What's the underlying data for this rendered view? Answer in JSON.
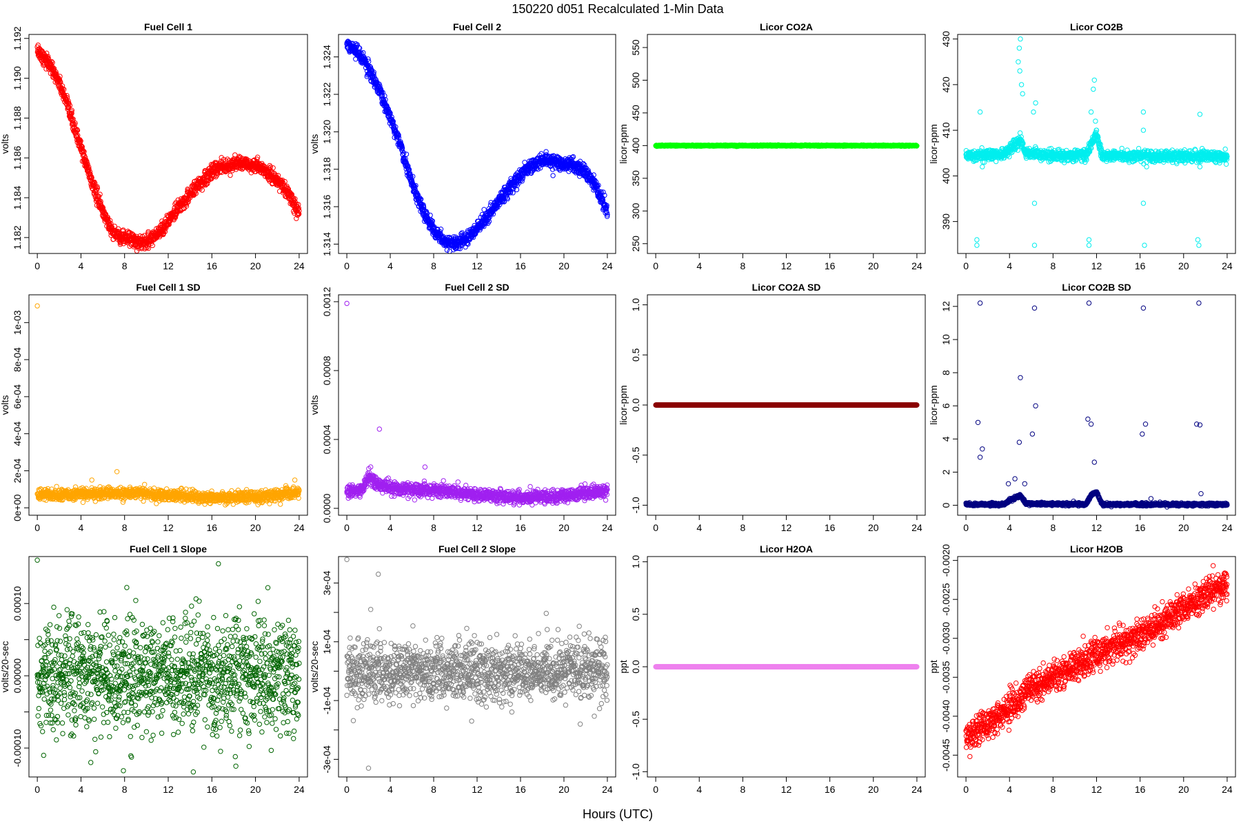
{
  "figure": {
    "title": "150220   d051   Recalculated 1-Min Data",
    "xlabel": "Hours (UTC)"
  },
  "chart_data": [
    {
      "id": "fc1",
      "type": "scatter",
      "title": "Fuel Cell 1",
      "ylabel": "volts",
      "color": "#ff0000",
      "xlim": [
        0,
        24
      ],
      "xticks": [
        "0",
        "4",
        "8",
        "12",
        "16",
        "20",
        "24"
      ],
      "ylim": [
        1.1812,
        1.1922
      ],
      "yticks": [
        1.182,
        1.184,
        1.186,
        1.188,
        1.19,
        1.192
      ],
      "ytick_labels": [
        "1.182",
        "1.184",
        "1.186",
        "1.188",
        "1.190",
        "1.192"
      ],
      "trend": [
        [
          0,
          1.1914
        ],
        [
          1,
          1.1908
        ],
        [
          2,
          1.1898
        ],
        [
          3,
          1.1882
        ],
        [
          4,
          1.1865
        ],
        [
          5,
          1.1848
        ],
        [
          6,
          1.1833
        ],
        [
          7,
          1.1822
        ],
        [
          8,
          1.182
        ],
        [
          9,
          1.1818
        ],
        [
          10,
          1.1818
        ],
        [
          11,
          1.1822
        ],
        [
          12,
          1.1828
        ],
        [
          13,
          1.1835
        ],
        [
          14,
          1.1842
        ],
        [
          15,
          1.1848
        ],
        [
          16,
          1.1853
        ],
        [
          17,
          1.1856
        ],
        [
          18,
          1.1857
        ],
        [
          19,
          1.1857
        ],
        [
          20,
          1.1856
        ],
        [
          21,
          1.1853
        ],
        [
          22,
          1.1849
        ],
        [
          23,
          1.1842
        ],
        [
          24,
          1.1832
        ]
      ],
      "spread": 0.00018,
      "points": 1400
    },
    {
      "id": "fc2",
      "type": "scatter",
      "title": "Fuel Cell 2",
      "ylabel": "volts",
      "color": "#0000ff",
      "xlim": [
        0,
        24
      ],
      "xticks": [
        "0",
        "4",
        "8",
        "12",
        "16",
        "20",
        "24"
      ],
      "ylim": [
        1.3135,
        1.3252
      ],
      "yticks": [
        1.314,
        1.316,
        1.318,
        1.32,
        1.322,
        1.324
      ],
      "ytick_labels": [
        "1.314",
        "1.316",
        "1.318",
        "1.320",
        "1.322",
        "1.324"
      ],
      "trend": [
        [
          0,
          1.3247
        ],
        [
          1,
          1.3242
        ],
        [
          2,
          1.3234
        ],
        [
          3,
          1.3222
        ],
        [
          4,
          1.3208
        ],
        [
          5,
          1.3192
        ],
        [
          6,
          1.3172
        ],
        [
          7,
          1.3158
        ],
        [
          8,
          1.3148
        ],
        [
          9,
          1.3142
        ],
        [
          10,
          1.314
        ],
        [
          11,
          1.3143
        ],
        [
          12,
          1.3148
        ],
        [
          13,
          1.3155
        ],
        [
          14,
          1.3163
        ],
        [
          15,
          1.317
        ],
        [
          16,
          1.3177
        ],
        [
          17,
          1.3182
        ],
        [
          18,
          1.3185
        ],
        [
          19,
          1.3184
        ],
        [
          20,
          1.3183
        ],
        [
          21,
          1.3182
        ],
        [
          22,
          1.3178
        ],
        [
          23,
          1.317
        ],
        [
          24,
          1.3157
        ]
      ],
      "spread": 0.00018,
      "points": 1400
    },
    {
      "id": "co2a",
      "type": "scatter",
      "title": "Licor CO2A",
      "ylabel": "licor-ppm",
      "color": "#00ff00",
      "xlim": [
        0,
        24
      ],
      "xticks": [
        "0",
        "4",
        "8",
        "12",
        "16",
        "20",
        "24"
      ],
      "ylim": [
        235,
        570
      ],
      "yticks": [
        250,
        300,
        350,
        400,
        450,
        500,
        550
      ],
      "ytick_labels": [
        "250",
        "300",
        "350",
        "400",
        "450",
        "500",
        "550"
      ],
      "trend": [
        [
          0,
          400
        ],
        [
          24,
          400
        ]
      ],
      "spread": 0.4,
      "points": 1400
    },
    {
      "id": "co2b",
      "type": "scatter",
      "title": "Licor CO2B",
      "ylabel": "licor-ppm",
      "color": "#00eeee",
      "xlim": [
        0,
        24
      ],
      "xticks": [
        "0",
        "4",
        "8",
        "12",
        "16",
        "20",
        "24"
      ],
      "ylim": [
        383,
        431
      ],
      "yticks": [
        390,
        400,
        410,
        420,
        430
      ],
      "ytick_labels": [
        "390",
        "400",
        "410",
        "420",
        "430"
      ],
      "trend": [
        [
          0,
          404.5
        ],
        [
          3.5,
          404.8
        ],
        [
          4,
          406
        ],
        [
          4.5,
          407
        ],
        [
          5,
          408
        ],
        [
          5.5,
          405
        ],
        [
          6,
          405
        ],
        [
          7,
          404.5
        ],
        [
          11,
          404.5
        ],
        [
          11.5,
          407
        ],
        [
          12,
          409
        ],
        [
          12.5,
          404.5
        ],
        [
          24,
          404.2
        ]
      ],
      "spread": 0.6,
      "points": 1400,
      "outliers": [
        [
          1.0,
          386
        ],
        [
          1.0,
          384.8
        ],
        [
          1.3,
          414
        ],
        [
          1.5,
          402
        ],
        [
          1.7,
          403
        ],
        [
          4.8,
          425
        ],
        [
          4.9,
          428
        ],
        [
          5.0,
          430
        ],
        [
          5.1,
          420
        ],
        [
          4.95,
          423
        ],
        [
          5.2,
          418
        ],
        [
          6.2,
          414
        ],
        [
          6.3,
          394
        ],
        [
          6.3,
          384.8
        ],
        [
          6.4,
          416
        ],
        [
          11.3,
          386
        ],
        [
          11.3,
          384.8
        ],
        [
          11.5,
          414
        ],
        [
          11.7,
          419
        ],
        [
          11.8,
          421
        ],
        [
          11.9,
          412
        ],
        [
          12.0,
          410
        ],
        [
          16.3,
          414
        ],
        [
          16.3,
          410
        ],
        [
          16.3,
          394
        ],
        [
          16.4,
          384.8
        ],
        [
          16.6,
          402
        ],
        [
          16.6,
          403
        ],
        [
          21.3,
          386
        ],
        [
          21.4,
          384.8
        ],
        [
          21.5,
          413.5
        ],
        [
          21.5,
          402
        ],
        [
          21.7,
          406
        ]
      ]
    },
    {
      "id": "fc1sd",
      "type": "scatter",
      "title": "Fuel Cell 1 SD",
      "ylabel": "volts",
      "color": "#ffa500",
      "xlim": [
        0,
        24
      ],
      "xticks": [
        "0",
        "4",
        "8",
        "12",
        "16",
        "20",
        "24"
      ],
      "ylim": [
        -4e-05,
        0.00115
      ],
      "yticks": [
        0,
        0.0002,
        0.0004,
        0.0006,
        0.0008,
        0.001
      ],
      "ytick_labels": [
        "0e+00",
        "2e-04",
        "4e-04",
        "6e-04",
        "8e-04",
        "1e-03"
      ],
      "trend": [
        [
          0,
          7e-05
        ],
        [
          5,
          7.5e-05
        ],
        [
          9,
          8e-05
        ],
        [
          12,
          7e-05
        ],
        [
          16,
          5.5e-05
        ],
        [
          20,
          6e-05
        ],
        [
          24,
          8e-05
        ]
      ],
      "spread": 1.5e-05,
      "points": 1400,
      "outliers": [
        [
          0,
          0.00109
        ],
        [
          7.3,
          0.000195
        ],
        [
          5.0,
          0.00015
        ],
        [
          23.6,
          0.00015
        ]
      ]
    },
    {
      "id": "fc2sd",
      "type": "scatter",
      "title": "Fuel Cell 2 SD",
      "ylabel": "volts",
      "color": "#a020f0",
      "xlim": [
        0,
        24
      ],
      "xticks": [
        "0",
        "4",
        "8",
        "12",
        "16",
        "20",
        "24"
      ],
      "ylim": [
        -4e-05,
        0.00124
      ],
      "yticks": [
        0,
        0.0004,
        0.0008,
        0.0012
      ],
      "ytick_labels": [
        "0.0000",
        "0.0004",
        "0.0008",
        "0.0012"
      ],
      "trend": [
        [
          0,
          0.0001
        ],
        [
          1.5,
          0.00011
        ],
        [
          2,
          0.00018
        ],
        [
          3,
          0.00014
        ],
        [
          5,
          0.00011
        ],
        [
          9,
          0.0001
        ],
        [
          12,
          8e-05
        ],
        [
          16,
          6e-05
        ],
        [
          20,
          7e-05
        ],
        [
          24,
          0.0001
        ]
      ],
      "spread": 1.8e-05,
      "points": 1400,
      "outliers": [
        [
          0,
          0.00119
        ],
        [
          3.0,
          0.00046
        ],
        [
          7.2,
          0.00024
        ],
        [
          2.2,
          0.00024
        ]
      ]
    },
    {
      "id": "co2asd",
      "type": "scatter",
      "title": "Licor CO2A SD",
      "ylabel": "licor-ppm",
      "color": "#8b0000",
      "xlim": [
        0,
        24
      ],
      "xticks": [
        "0",
        "4",
        "8",
        "12",
        "16",
        "20",
        "24"
      ],
      "ylim": [
        -1.1,
        1.1
      ],
      "yticks": [
        -1,
        -0.5,
        0,
        0.5,
        1
      ],
      "ytick_labels": [
        "-1.0",
        "-0.5",
        "0.0",
        "0.5",
        "1.0"
      ],
      "trend": [
        [
          0,
          0
        ],
        [
          24,
          0
        ]
      ],
      "spread": 0.0,
      "points": 1400
    },
    {
      "id": "co2bsd",
      "type": "scatter",
      "title": "Licor CO2B SD",
      "ylabel": "licor-ppm",
      "color": "#000080",
      "xlim": [
        0,
        24
      ],
      "xticks": [
        "0",
        "4",
        "8",
        "12",
        "16",
        "20",
        "24"
      ],
      "ylim": [
        -0.6,
        12.7
      ],
      "yticks": [
        0,
        2,
        4,
        6,
        8,
        10,
        12
      ],
      "ytick_labels": [
        "0",
        "2",
        "4",
        "6",
        "8",
        "10",
        "12"
      ],
      "trend": [
        [
          0,
          0.05
        ],
        [
          3.5,
          0.05
        ],
        [
          4,
          0.3
        ],
        [
          5,
          0.6
        ],
        [
          5.5,
          0.1
        ],
        [
          11,
          0.05
        ],
        [
          11.5,
          0.6
        ],
        [
          12,
          0.8
        ],
        [
          12.5,
          0.05
        ],
        [
          24,
          0.05
        ]
      ],
      "spread": 0.04,
      "points": 1400,
      "outliers": [
        [
          1.3,
          12.2
        ],
        [
          1.1,
          5.0
        ],
        [
          1.5,
          3.4
        ],
        [
          1.3,
          2.9
        ],
        [
          6.3,
          11.9
        ],
        [
          6.4,
          6.0
        ],
        [
          5.0,
          7.7
        ],
        [
          4.9,
          3.8
        ],
        [
          6.1,
          4.3
        ],
        [
          11.3,
          12.2
        ],
        [
          11.2,
          5.2
        ],
        [
          11.5,
          4.9
        ],
        [
          11.8,
          2.6
        ],
        [
          16.3,
          11.9
        ],
        [
          16.5,
          4.9
        ],
        [
          16.2,
          4.3
        ],
        [
          21.4,
          12.2
        ],
        [
          21.2,
          4.9
        ],
        [
          21.5,
          4.85
        ],
        [
          21.6,
          0.7
        ],
        [
          17.0,
          0.4
        ],
        [
          5.4,
          1.3
        ],
        [
          4.5,
          1.6
        ],
        [
          3.9,
          1.3
        ]
      ]
    },
    {
      "id": "fc1slope",
      "type": "scatter",
      "title": "Fuel Cell 1 Slope",
      "ylabel": "volts/20-sec",
      "color": "#006400",
      "xlim": [
        0,
        24
      ],
      "xticks": [
        "0",
        "4",
        "8",
        "12",
        "16",
        "20",
        "24"
      ],
      "ylim": [
        -0.00014,
        0.000165
      ],
      "yticks": [
        -0.0001,
        -5e-05,
        0,
        5e-05,
        0.0001
      ],
      "ytick_labels": [
        "-0.00010",
        "",
        "0.00000",
        "",
        "0.00010"
      ],
      "trend": [
        [
          0,
          0
        ],
        [
          24,
          0
        ]
      ],
      "spread": 3.8e-05,
      "points": 1400,
      "outliers": [
        [
          0,
          0.00016
        ],
        [
          16.6,
          0.000155
        ],
        [
          14.3,
          -0.000133
        ],
        [
          18.2,
          -0.000125
        ],
        [
          4.9,
          -0.00012
        ]
      ]
    },
    {
      "id": "fc2slope",
      "type": "scatter",
      "title": "Fuel Cell 2 Slope",
      "ylabel": "volts/20-sec",
      "color": "#808080",
      "xlim": [
        0,
        24
      ],
      "xticks": [
        "0",
        "4",
        "8",
        "12",
        "16",
        "20",
        "24"
      ],
      "ylim": [
        -0.00036,
        0.00039
      ],
      "yticks": [
        -0.0003,
        -0.0002,
        -0.0001,
        0,
        0.0001,
        0.0002,
        0.0003
      ],
      "ytick_labels": [
        "-3e-04",
        "",
        "-1e-04",
        "",
        "1e-04",
        "",
        "3e-04"
      ],
      "trend": [
        [
          0,
          0
        ],
        [
          24,
          0
        ]
      ],
      "spread": 5e-05,
      "points": 1400,
      "outliers": [
        [
          0,
          0.00038
        ],
        [
          2.9,
          0.00033
        ],
        [
          2.0,
          -0.00033
        ],
        [
          2.2,
          0.00021
        ],
        [
          11.5,
          -0.00017
        ],
        [
          21.5,
          -0.00018
        ]
      ]
    },
    {
      "id": "h2oa",
      "type": "scatter",
      "title": "Licor H2OA",
      "ylabel": "ppt",
      "color": "#ee82ee",
      "xlim": [
        0,
        24
      ],
      "xticks": [
        "0",
        "4",
        "8",
        "12",
        "16",
        "20",
        "24"
      ],
      "ylim": [
        -1.05,
        1.05
      ],
      "yticks": [
        -1,
        -0.5,
        0,
        0.5,
        1
      ],
      "ytick_labels": [
        "-1.0",
        "-0.5",
        "0.0",
        "0.5",
        "1.0"
      ],
      "trend": [
        [
          0,
          0
        ],
        [
          24,
          0
        ]
      ],
      "spread": 0.0,
      "points": 1400
    },
    {
      "id": "h2ob",
      "type": "scatter",
      "title": "Licor H2OB",
      "ylabel": "ppt",
      "color": "#ff0000",
      "xlim": [
        0,
        24
      ],
      "xticks": [
        "0",
        "4",
        "8",
        "12",
        "16",
        "20",
        "24"
      ],
      "ylim": [
        -0.00478,
        -0.00195
      ],
      "yticks": [
        -0.0045,
        -0.004,
        -0.0035,
        -0.003,
        -0.0025,
        -0.002
      ],
      "ytick_labels": [
        "-0.0045",
        "-0.0040",
        "-0.0035",
        "-0.0030",
        "-0.0025",
        "-0.0020"
      ],
      "trend": [
        [
          0,
          -0.0043
        ],
        [
          2,
          -0.0041
        ],
        [
          4,
          -0.0039
        ],
        [
          6,
          -0.00365
        ],
        [
          8,
          -0.0035
        ],
        [
          10,
          -0.00335
        ],
        [
          12,
          -0.0032
        ],
        [
          14,
          -0.0031
        ],
        [
          16,
          -0.00295
        ],
        [
          18,
          -0.0028
        ],
        [
          20,
          -0.0026
        ],
        [
          22,
          -0.00245
        ],
        [
          24,
          -0.0023
        ]
      ],
      "spread": 0.0001,
      "points": 1400
    }
  ]
}
